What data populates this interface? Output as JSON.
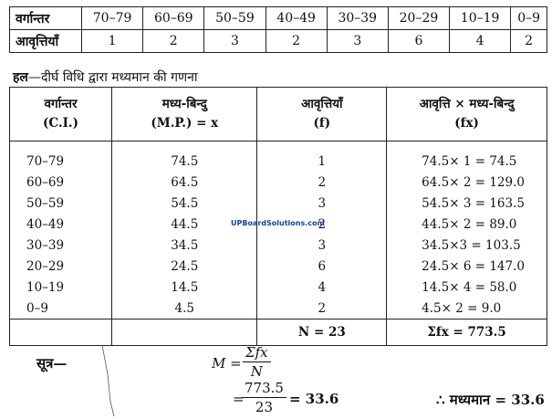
{
  "freq_table": {
    "row1_head": "वर्गान्तर",
    "classes": [
      "70–79",
      "60–69",
      "50–59",
      "40–49",
      "30–39",
      "20–29",
      "10–19",
      "0–9"
    ],
    "row2_head": "आवृत्तियाँ",
    "frequencies": [
      "1",
      "2",
      "3",
      "2",
      "3",
      "6",
      "4",
      "2"
    ]
  },
  "solution": {
    "label": "हल",
    "text": "—दीर्घ विधि द्वारा मध्यमान की गणना"
  },
  "main_table": {
    "headers": [
      {
        "line1": "वर्गान्तर",
        "line2": "(C.I.)"
      },
      {
        "line1": "मध्य-बिन्दु",
        "line2": "(M.P.) = x"
      },
      {
        "line1": "आवृत्तियाँ",
        "line2": "(f)"
      },
      {
        "line1": "आवृत्ति × मध्य-बिन्दु",
        "line2": "(fx)"
      }
    ],
    "rows": [
      {
        "ci": "70–79",
        "mp": "74.5",
        "f": "1",
        "fx": "74.5× 1 = 74.5"
      },
      {
        "ci": "60–69",
        "mp": "64.5",
        "f": "2",
        "fx": "64.5× 2 = 129.0"
      },
      {
        "ci": "50–59",
        "mp": "54.5",
        "f": "3",
        "fx": "54.5× 3 = 163.5"
      },
      {
        "ci": "40–49",
        "mp": "44.5",
        "f": "2",
        "fx": "44.5× 2 = 89.0"
      },
      {
        "ci": "30–39",
        "mp": "34.5",
        "f": "3",
        "fx": "34.5×3 = 103.5"
      },
      {
        "ci": "20–29",
        "mp": "24.5",
        "f": "6",
        "fx": "24.5× 6 = 147.0"
      },
      {
        "ci": "10–19",
        "mp": "14.5",
        "f": "4",
        "fx": "14.5× 4 = 58.0"
      },
      {
        "ci": "0–9",
        "mp": "4.5",
        "f": "2",
        "fx": "4.5× 2 = 9.0"
      }
    ],
    "total_n": "N = 23",
    "total_fx": "Σfx = 773.5"
  },
  "watermark": "UPBoardSolutions.com",
  "formula": {
    "label": "सूत्र—",
    "lhs": "M =",
    "num1": "Σfx",
    "den1": "N",
    "eq": "=",
    "num2": "773.5",
    "den2": "23",
    "result": "= 33.6",
    "conclusion": "∴ मध्यमान = 33.6"
  }
}
